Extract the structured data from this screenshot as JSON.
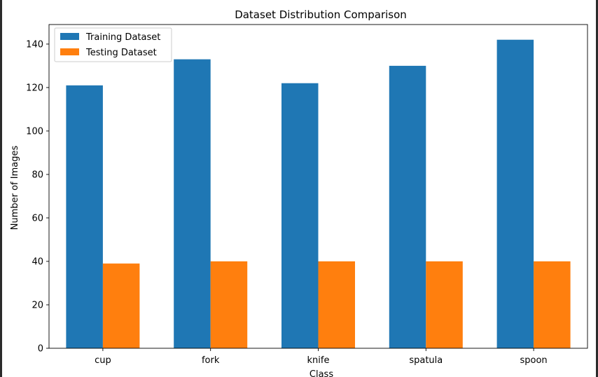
{
  "chart_data": {
    "type": "bar",
    "title": "Dataset Distribution Comparison",
    "xlabel": "Class",
    "ylabel": "Number of Images",
    "categories": [
      "cup",
      "fork",
      "knife",
      "spatula",
      "spoon"
    ],
    "series": [
      {
        "name": "Training Dataset",
        "values": [
          121,
          133,
          122,
          130,
          142
        ],
        "color": "#1f77b4"
      },
      {
        "name": "Testing Dataset",
        "values": [
          39,
          40,
          40,
          40,
          40
        ],
        "color": "#ff7f0e"
      }
    ],
    "ylim": [
      0,
      149
    ],
    "yticks": [
      "0",
      "20",
      "40",
      "60",
      "80",
      "100",
      "120",
      "140"
    ],
    "ytick_values": [
      0,
      20,
      40,
      60,
      80,
      100,
      120,
      140
    ],
    "grid": false,
    "legend_position": "top-left"
  }
}
